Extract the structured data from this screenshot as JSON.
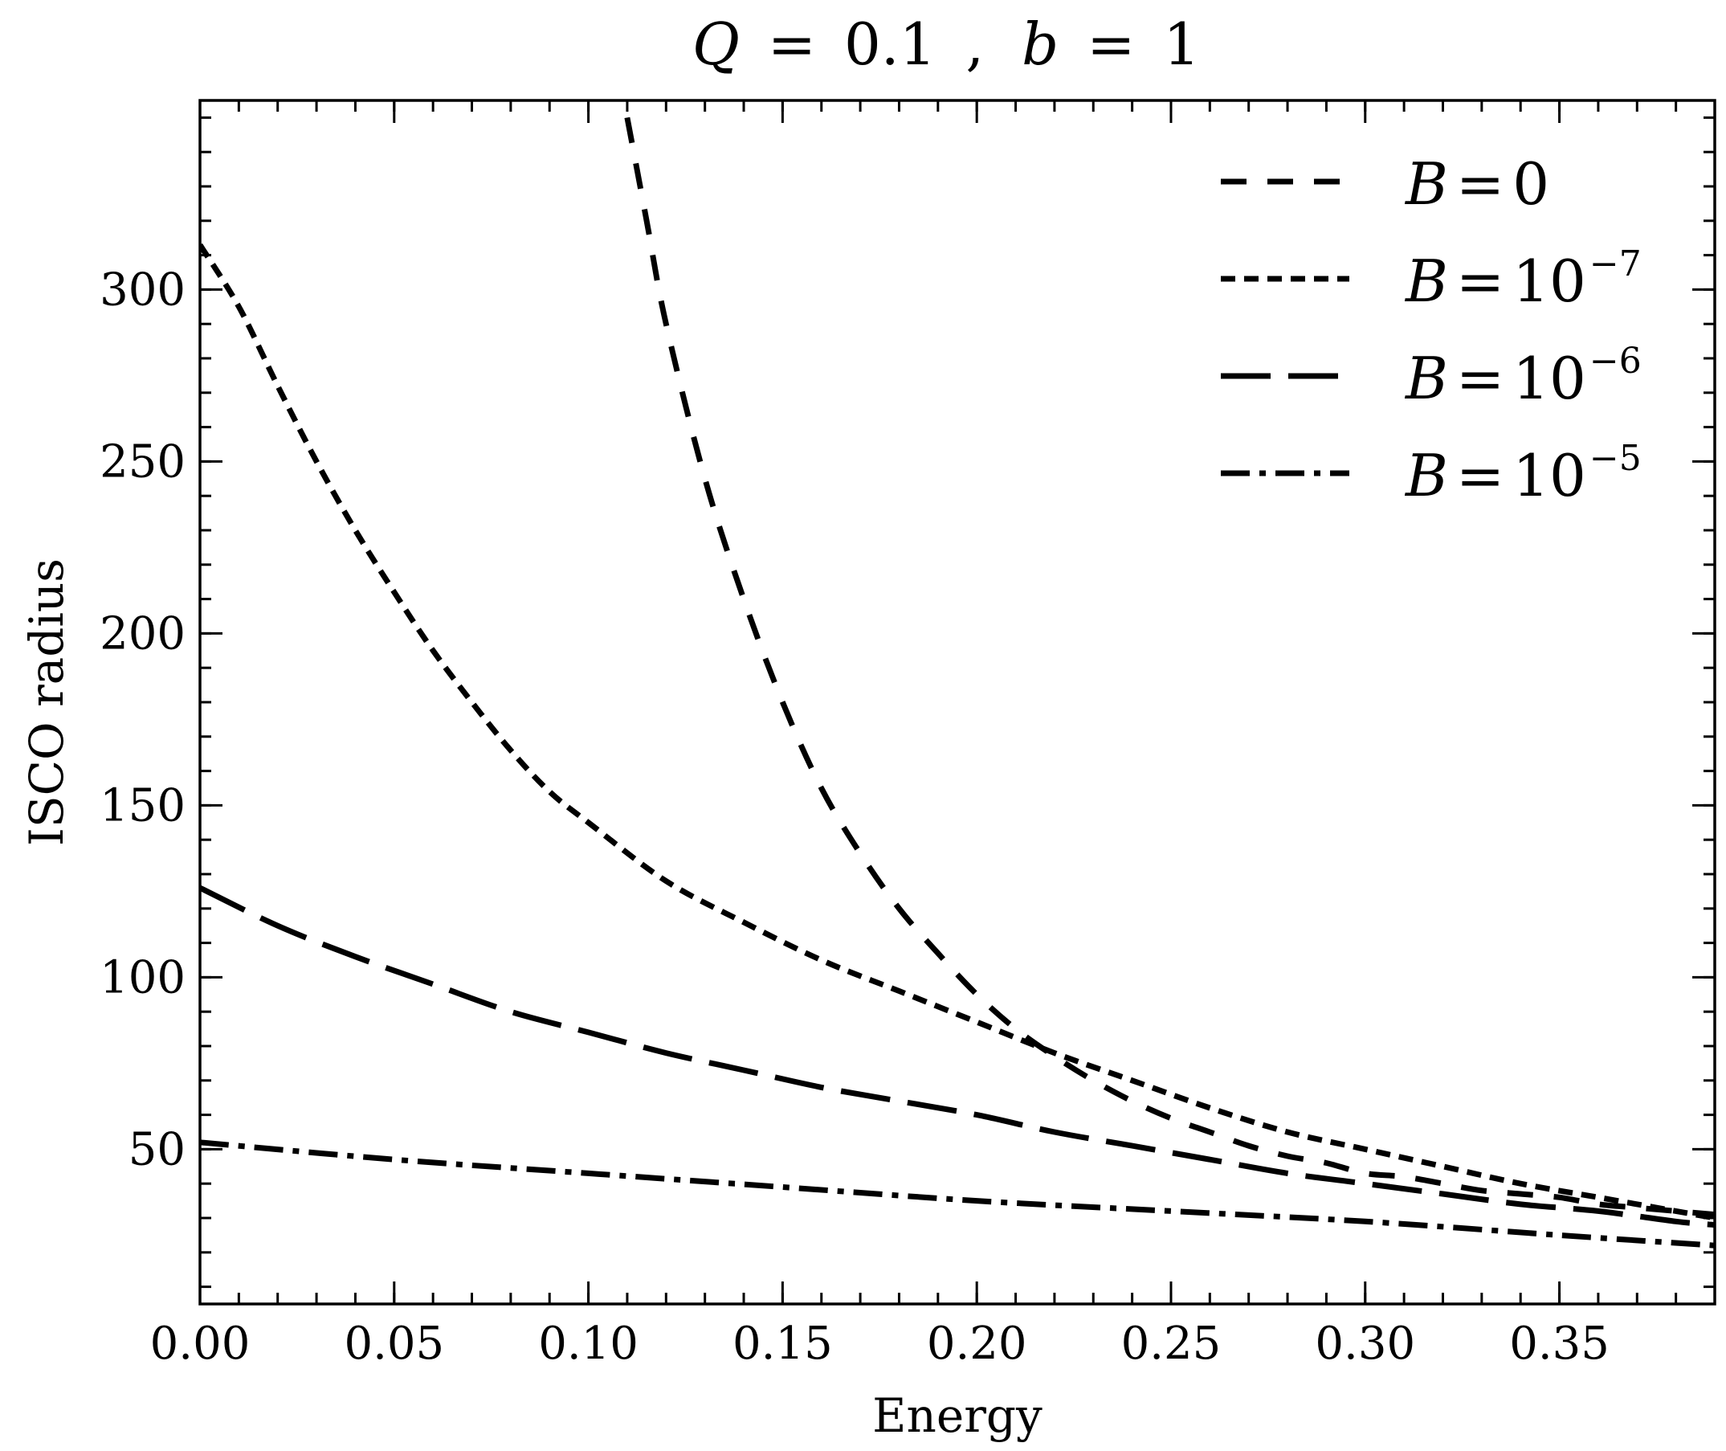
{
  "chart_data": {
    "type": "line",
    "title": "Q = 0.1 ,  b = 1",
    "title_parts": {
      "q_value": "0.1",
      "b_value": "1"
    },
    "xlabel": "Energy",
    "ylabel": "ISCO radius",
    "xlim": [
      0,
      0.39
    ],
    "ylim": [
      5,
      355
    ],
    "x_ticks": [
      0.0,
      0.05,
      0.1,
      0.15,
      0.2,
      0.25,
      0.3,
      0.35
    ],
    "x_tick_labels": [
      "0.00",
      "0.05",
      "0.10",
      "0.15",
      "0.20",
      "0.25",
      "0.30",
      "0.35"
    ],
    "y_ticks": [
      50,
      100,
      150,
      200,
      250,
      300
    ],
    "y_tick_labels": [
      "50",
      "100",
      "150",
      "200",
      "250",
      "300"
    ],
    "x_minor_step": 0.01,
    "y_minor_step": 10,
    "grid": false,
    "legend_position": "top-right",
    "series": [
      {
        "name": "B = 0",
        "label_value": "0",
        "label_exp": "",
        "dash": "long-dash",
        "x": [
          0.11,
          0.115,
          0.12,
          0.13,
          0.14,
          0.15,
          0.16,
          0.17,
          0.18,
          0.19,
          0.2,
          0.21,
          0.22,
          0.23,
          0.24,
          0.25,
          0.26,
          0.27,
          0.28,
          0.29,
          0.3,
          0.31,
          0.32,
          0.33,
          0.34,
          0.35,
          0.36,
          0.37,
          0.38,
          0.39
        ],
        "y": [
          350,
          320,
          290,
          245,
          210,
          180,
          155,
          136,
          120,
          107,
          95,
          85,
          77,
          70,
          64,
          59,
          55,
          51,
          48,
          46,
          43,
          42,
          40,
          38,
          37,
          36,
          34,
          33,
          32,
          31
        ]
      },
      {
        "name": "B = 10^-7",
        "label_value": "10",
        "label_exp": "−7",
        "dash": "short-dash",
        "x": [
          0.0,
          0.01,
          0.02,
          0.03,
          0.04,
          0.05,
          0.06,
          0.07,
          0.08,
          0.09,
          0.1,
          0.12,
          0.14,
          0.16,
          0.18,
          0.2,
          0.22,
          0.24,
          0.26,
          0.28,
          0.3,
          0.32,
          0.34,
          0.36,
          0.38,
          0.39
        ],
        "y": [
          313,
          295,
          272,
          250,
          230,
          212,
          195,
          180,
          166,
          154,
          145,
          128,
          116,
          105,
          96,
          87,
          78,
          70,
          62,
          55,
          50,
          45,
          40,
          36,
          32,
          30
        ]
      },
      {
        "name": "B = 10^-6",
        "label_value": "10",
        "label_exp": "−6",
        "dash": "long-dash-wide",
        "x": [
          0.0,
          0.02,
          0.04,
          0.06,
          0.08,
          0.1,
          0.12,
          0.14,
          0.16,
          0.18,
          0.2,
          0.22,
          0.24,
          0.26,
          0.28,
          0.3,
          0.32,
          0.34,
          0.36,
          0.38,
          0.39
        ],
        "y": [
          126,
          115,
          106,
          98,
          90,
          84,
          78,
          73,
          68,
          64,
          60,
          55,
          51,
          47,
          43,
          40,
          37,
          34,
          32,
          29,
          28
        ]
      },
      {
        "name": "B = 10^-5",
        "label_value": "10",
        "label_exp": "−5",
        "dash": "dash-dot",
        "x": [
          0.0,
          0.05,
          0.1,
          0.15,
          0.2,
          0.25,
          0.3,
          0.35,
          0.39
        ],
        "y": [
          52,
          47,
          43,
          39,
          35,
          32,
          29,
          25,
          22
        ]
      }
    ]
  }
}
